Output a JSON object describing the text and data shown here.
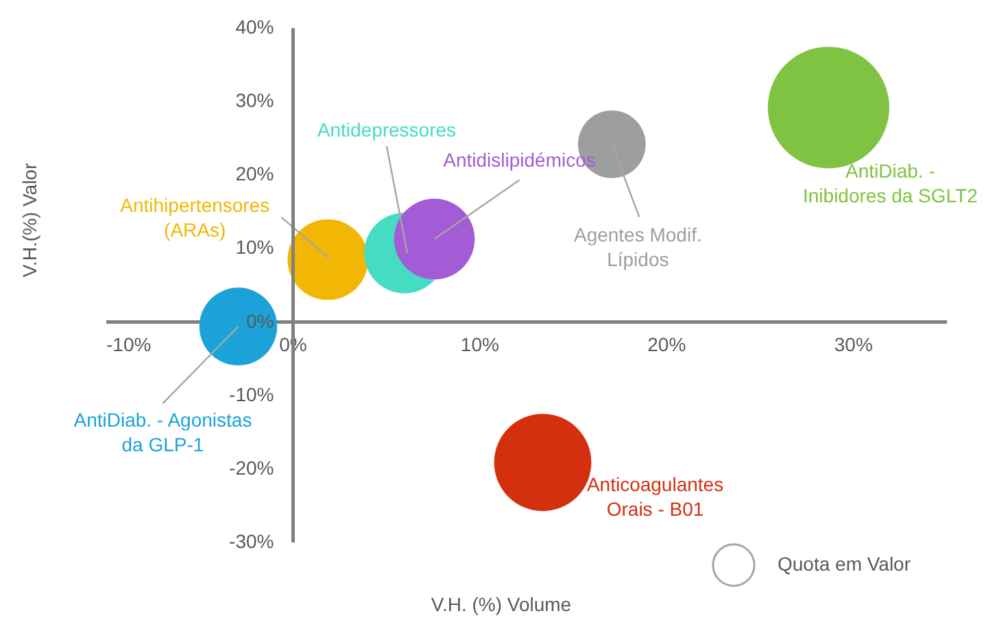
{
  "chart_data": {
    "type": "bubble",
    "xlabel": "V.H. (%) Volume",
    "ylabel": "V.H.(%) Valor",
    "x": [
      -2.9,
      1.9,
      6.0,
      7.6,
      17.1,
      28.7,
      13.4
    ],
    "series": [
      {
        "name": "Quota em Valor",
        "colors": [
          "#1ba3d9",
          "#f2b705",
          "#45dcc4",
          "#a45bd6",
          "#9e9e9e",
          "#80c342",
          "#d4300f"
        ],
        "values": [
          -0.7,
          8.4,
          9.3,
          11.2,
          24.1,
          29.1,
          -19.2
        ],
        "sizes": [
          0.41,
          0.44,
          0.44,
          0.44,
          0.31,
          1,
          0.64
        ]
      }
    ],
    "annotations": [
      {
        "text": "AntiDiab. - Agonistas\nda GLP-1",
        "x": -2.9,
        "y": -0.7
      },
      {
        "text": "Antihipertensores\n(ARAs)",
        "x": 1.9,
        "y": 8.4
      },
      {
        "text": "Antidepressores",
        "x": 6.0,
        "y": 9.3
      },
      {
        "text": "Antidislipidémicos",
        "x": 7.6,
        "y": 11.2
      },
      {
        "text": "Agentes Modif.\nLípidos",
        "x": 17.1,
        "y": 24.1
      },
      {
        "text": "AntiDiab. -\nInibidores da SGLT2",
        "x": 28.7,
        "y": 29.1
      },
      {
        "text": "Anticoagulantes\nOrais - B01",
        "x": 13.4,
        "y": -19.2
      }
    ],
    "xlim": [
      -10,
      35
    ],
    "ylim": [
      -30,
      40
    ],
    "xticks": [
      {
        "value": -10,
        "label": "-10%"
      },
      {
        "value": 0,
        "label": "0%"
      },
      {
        "value": 10,
        "label": "10%"
      },
      {
        "value": 20,
        "label": "20%"
      },
      {
        "value": 30,
        "label": "30%"
      }
    ],
    "yticks": [
      {
        "value": -30,
        "label": "-30%"
      },
      {
        "value": -20,
        "label": "-20%"
      },
      {
        "value": -10,
        "label": "-10%"
      },
      {
        "value": 0,
        "label": "0%"
      },
      {
        "value": 10,
        "label": "10%"
      },
      {
        "value": 20,
        "label": "20%"
      },
      {
        "value": 30,
        "label": "30%"
      },
      {
        "value": 40,
        "label": "40%"
      }
    ],
    "legend": "bottom right"
  }
}
